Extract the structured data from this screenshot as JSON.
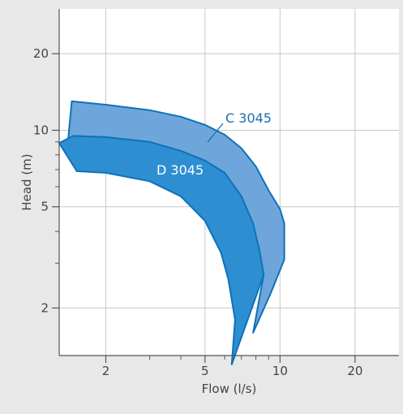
{
  "chart_data": {
    "type": "area",
    "xlabel": "Flow (l/s)",
    "ylabel": "Head (m)",
    "x_scale": "log",
    "y_scale": "log",
    "xlim": [
      1.3,
      30
    ],
    "ylim": [
      1.3,
      30
    ],
    "x_ticks": [
      2,
      5,
      10,
      20
    ],
    "y_ticks": [
      2,
      5,
      10,
      20
    ],
    "grid": true,
    "colors": {
      "background": "#e8e8e8",
      "plot_background": "#ffffff",
      "grid": "#c8c8c8",
      "axis": "#555555",
      "outline": "#0e72b8",
      "c3045_fill": "#6ea6dc",
      "d3045_fill": "#2d8fd1",
      "c3045_label": "#1a6fb2",
      "d3045_label": "#ffffff"
    },
    "series": [
      {
        "name": "C 3045",
        "color": "#6ea6dc",
        "polygon": [
          [
            1.46,
            13.0
          ],
          [
            2.0,
            12.6
          ],
          [
            3.0,
            12.0
          ],
          [
            4.0,
            11.3
          ],
          [
            5.0,
            10.5
          ],
          [
            6.0,
            9.6
          ],
          [
            7.0,
            8.5
          ],
          [
            8.0,
            7.2
          ],
          [
            9.0,
            5.8
          ],
          [
            10.0,
            4.9
          ],
          [
            10.4,
            4.3
          ],
          [
            10.4,
            3.1
          ],
          [
            9.2,
            2.3
          ],
          [
            7.8,
            1.6
          ],
          [
            8.6,
            2.7
          ],
          [
            8.2,
            3.5
          ],
          [
            7.6,
            4.5
          ],
          [
            6.5,
            5.8
          ],
          [
            5.5,
            7.0
          ],
          [
            4.2,
            8.0
          ],
          [
            3.0,
            8.8
          ],
          [
            2.0,
            9.3
          ],
          [
            1.55,
            9.4
          ],
          [
            1.4,
            8.4
          ]
        ]
      },
      {
        "name": "D 3045",
        "color": "#2d8fd1",
        "polygon": [
          [
            1.48,
            9.5
          ],
          [
            2.0,
            9.4
          ],
          [
            3.0,
            9.0
          ],
          [
            4.0,
            8.3
          ],
          [
            5.0,
            7.6
          ],
          [
            6.0,
            6.8
          ],
          [
            7.0,
            5.5
          ],
          [
            7.8,
            4.3
          ],
          [
            8.3,
            3.3
          ],
          [
            8.6,
            2.7
          ],
          [
            6.4,
            1.2
          ],
          [
            6.6,
            1.8
          ],
          [
            6.2,
            2.6
          ],
          [
            5.8,
            3.3
          ],
          [
            5.0,
            4.4
          ],
          [
            4.0,
            5.5
          ],
          [
            3.0,
            6.3
          ],
          [
            2.0,
            6.8
          ],
          [
            1.53,
            6.9
          ],
          [
            1.3,
            8.9
          ]
        ]
      }
    ],
    "annotations": [
      {
        "text": "C 3045",
        "target": "C 3045"
      },
      {
        "text": "D 3045",
        "target": "D 3045"
      }
    ]
  }
}
